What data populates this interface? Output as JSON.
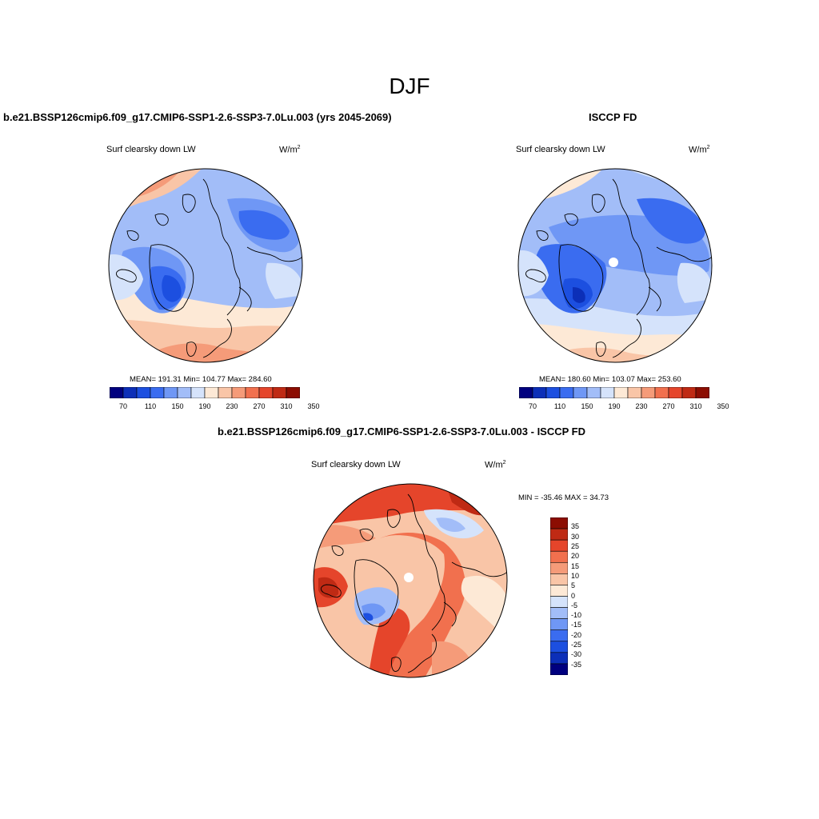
{
  "figure": {
    "title": "DJF"
  },
  "colors": {
    "abs_palette": [
      "#00007f",
      "#0c2fb8",
      "#1c4fe0",
      "#3a6cf0",
      "#6f97f5",
      "#a2bdf8",
      "#d5e3fb",
      "#fde9d6",
      "#f9c5a7",
      "#f59b79",
      "#f1704e",
      "#e5452b",
      "#bf2a14",
      "#8c0d02"
    ],
    "diff_palette": [
      "#00007f",
      "#0c2fb8",
      "#1c4fe0",
      "#3a6cf0",
      "#6f97f5",
      "#a2bdf8",
      "#d5e3fb",
      "#fde9d6",
      "#f9c5a7",
      "#f59b79",
      "#f1704e",
      "#e5452b",
      "#bf2a14",
      "#8c0d02"
    ]
  },
  "panels": {
    "model": {
      "title": "b.e21.BSSP126cmip6.f09_g17.CMIP6-SSP1-2.6-SSP3-7.0Lu.003 (yrs 2045-2069)",
      "variable": "Surf clearsky down LW",
      "units_base": "W/m",
      "units_exp": "2",
      "stats": "MEAN= 191.31  Min= 104.77  Max= 284.60",
      "colorbar_labels": [
        "70",
        "110",
        "150",
        "190",
        "230",
        "270",
        "310",
        "350"
      ]
    },
    "obs": {
      "title": "ISCCP FD",
      "variable": "Surf clearsky down LW",
      "units_base": "W/m",
      "units_exp": "2",
      "stats": "MEAN= 180.60  Min= 103.07  Max= 253.60",
      "colorbar_labels": [
        "70",
        "110",
        "150",
        "190",
        "230",
        "270",
        "310",
        "350"
      ]
    },
    "diff": {
      "title": "b.e21.BSSP126cmip6.f09_g17.CMIP6-SSP1-2.6-SSP3-7.0Lu.003 - ISCCP FD",
      "variable": "Surf clearsky down LW",
      "units_base": "W/m",
      "units_exp": "2",
      "stats": "MIN = -35.46 MAX =  34.73",
      "colorbar_labels": [
        "35",
        "30",
        "25",
        "20",
        "15",
        "10",
        "5",
        "0",
        "-5",
        "-10",
        "-15",
        "-20",
        "-25",
        "-30",
        "-35"
      ]
    }
  }
}
